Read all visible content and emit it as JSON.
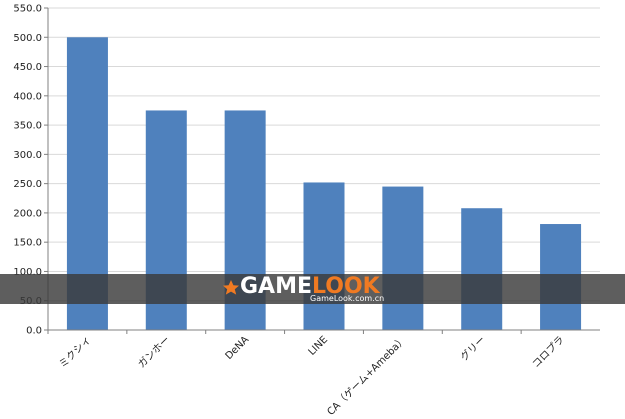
{
  "chart_data": {
    "type": "bar",
    "categories": [
      "ミクシィ",
      "ガンホー",
      "DeNA",
      "LINE",
      "CA（ゲーム+Ameba）",
      "グリー",
      "コロプラ"
    ],
    "values": [
      500,
      375,
      375,
      252,
      245,
      208,
      181
    ],
    "ylim": [
      0,
      550
    ],
    "yticks": [
      "0.0",
      "50.0",
      "100.0",
      "150.0",
      "200.0",
      "250.0",
      "300.0",
      "350.0",
      "400.0",
      "450.0",
      "500.0",
      "550.0"
    ],
    "grid": true,
    "colors": {
      "bar": "#4f81bd",
      "grid": "#d9d9d9",
      "axis": "#808080"
    }
  },
  "watermark": {
    "brand_game": "GAME",
    "brand_look": "LOOK",
    "url": "GameLook.com.cn",
    "colors": {
      "game": "#ffffff",
      "look": "#f07a22",
      "band": "#3a3a3a",
      "star": "#f07a22"
    }
  }
}
